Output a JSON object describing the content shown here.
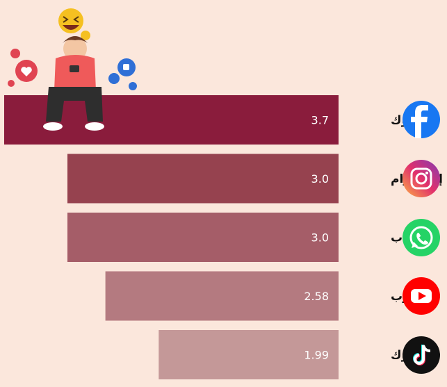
{
  "chart_data": {
    "type": "bar",
    "orientation": "horizontal",
    "direction": "right-to-left",
    "categories": [
      "فيسبوك",
      "إنستغرام",
      "واتساب",
      "يوتيوب",
      "تيك توك"
    ],
    "values": [
      3.7,
      3.0,
      3.0,
      2.58,
      1.99
    ],
    "value_labels": [
      "3.7",
      "3.0",
      "3.0",
      "2.58",
      "1.99"
    ],
    "icons": [
      "facebook-icon",
      "instagram-icon",
      "whatsapp-icon",
      "youtube-icon",
      "tiktok-icon"
    ],
    "bar_colors": [
      "#8a1c3c",
      "#96424f",
      "#a55d68",
      "#b47a80",
      "#c49898"
    ],
    "xlim": [
      0,
      3.7
    ],
    "title": "",
    "xlabel": "",
    "ylabel": ""
  },
  "colors": {
    "background": "#fbe7dc",
    "facebook": "#1877f2",
    "whatsapp": "#25d366",
    "youtube": "#ff0000",
    "tiktok": "#111111"
  }
}
